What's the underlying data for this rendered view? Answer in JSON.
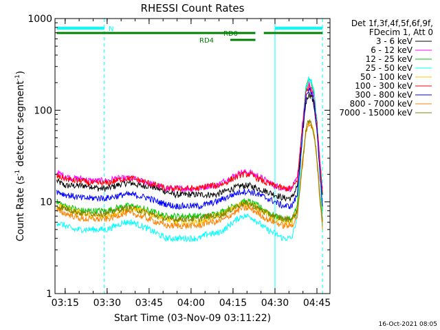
{
  "chart_data": {
    "type": "line",
    "title": "RHESSI Count Rates",
    "xlabel": "Start Time (03-Nov-09 03:11:22)",
    "ylabel": "Count Rate (s",
    "ylabel_sup1": "-1",
    "ylabel_mid": " detector segment",
    "ylabel_sup2": "-1",
    "ylabel_end": ")",
    "yscale": "log",
    "ylim": [
      1,
      1000
    ],
    "xlim": [
      "03:11:22",
      "04:49:40"
    ],
    "x_ticks": [
      "03:15",
      "03:30",
      "03:45",
      "04:00",
      "04:15",
      "04:30",
      "04:45"
    ],
    "y_ticks": [
      "1",
      "10",
      "100",
      "1000"
    ],
    "x": [
      "03:12",
      "03:15",
      "03:18",
      "03:21",
      "03:24",
      "03:27",
      "03:30",
      "03:33",
      "03:36",
      "03:39",
      "03:42",
      "03:45",
      "03:48",
      "03:51",
      "03:54",
      "03:57",
      "04:00",
      "04:03",
      "04:06",
      "04:09",
      "04:12",
      "04:15",
      "04:18",
      "04:21",
      "04:24",
      "04:27",
      "04:30",
      "04:33",
      "04:36",
      "04:38",
      "04:40",
      "04:41",
      "04:42",
      "04:43",
      "04:44",
      "04:45",
      "04:46",
      "04:47"
    ],
    "series": [
      {
        "name": "3 - 6 keV",
        "color": "#000000",
        "values": [
          17,
          15,
          15,
          15,
          15,
          14,
          14,
          15,
          16,
          16,
          15,
          15,
          14,
          13,
          12,
          12,
          12,
          12,
          12,
          12,
          13,
          14,
          15,
          15,
          14,
          13,
          12,
          11,
          11,
          15,
          60,
          120,
          150,
          145,
          110,
          60,
          25,
          12
        ]
      },
      {
        "name": "6 - 12 keV",
        "color": "#ff00ff",
        "values": [
          21,
          19,
          18,
          18,
          17,
          17,
          17,
          18,
          18,
          18,
          17,
          16,
          15,
          14,
          14,
          14,
          14,
          14,
          15,
          15,
          17,
          19,
          21,
          21,
          19,
          17,
          15,
          14,
          14,
          18,
          80,
          160,
          190,
          180,
          140,
          75,
          30,
          14
        ]
      },
      {
        "name": "12 - 25 keV",
        "color": "#00c800",
        "values": [
          10,
          9,
          8.5,
          8,
          8,
          8,
          8,
          8.5,
          9,
          9,
          8.5,
          8,
          7.5,
          7,
          7,
          7,
          7,
          7,
          7,
          7.5,
          8,
          9,
          10,
          10,
          9,
          8,
          7,
          6.5,
          6.5,
          9,
          70,
          165,
          215,
          200,
          150,
          75,
          25,
          8
        ]
      },
      {
        "name": "25 - 50 keV",
        "color": "#00ffff",
        "values": [
          6,
          5.5,
          5,
          5,
          5,
          5,
          5,
          5.5,
          6,
          6,
          5.5,
          5,
          4.5,
          4,
          4,
          4,
          4,
          4,
          4.5,
          4.5,
          5,
          6,
          7,
          7,
          6,
          5,
          4.5,
          4,
          4,
          7,
          70,
          170,
          220,
          210,
          160,
          80,
          25,
          5
        ]
      },
      {
        "name": "50 - 100 keV",
        "color": "#ffc800",
        "values": [
          9,
          8.5,
          8,
          7.5,
          7,
          7,
          7,
          7.5,
          8,
          8.5,
          8,
          7.5,
          7,
          6.5,
          6,
          6,
          6,
          6,
          6.5,
          7,
          7.5,
          8.5,
          9.5,
          9.5,
          8.5,
          7.5,
          6.5,
          6,
          6,
          8,
          30,
          60,
          75,
          70,
          55,
          30,
          12,
          6
        ]
      },
      {
        "name": "100 - 300 keV",
        "color": "#ff0000",
        "values": [
          19,
          18,
          17,
          17,
          16,
          16,
          16,
          17,
          18,
          18,
          17,
          16,
          15,
          14,
          14,
          14,
          14,
          14,
          15,
          15,
          16,
          18,
          20,
          20,
          18,
          16,
          15,
          14,
          14,
          17,
          75,
          150,
          180,
          170,
          130,
          70,
          28,
          13
        ]
      },
      {
        "name": "300 - 800 keV",
        "color": "#0000ff",
        "values": [
          13,
          12,
          11.5,
          11,
          11,
          11,
          11,
          11.5,
          12,
          12,
          11.5,
          11,
          10,
          9.5,
          9,
          9,
          9,
          9,
          9.5,
          10,
          11,
          12,
          13,
          13,
          12,
          11,
          10,
          9,
          9,
          12,
          60,
          130,
          170,
          160,
          120,
          60,
          22,
          9
        ]
      },
      {
        "name": "800 - 7000 keV",
        "color": "#ff8000",
        "values": [
          8,
          7.5,
          7,
          6.5,
          6.5,
          6.5,
          6.5,
          7,
          7.5,
          7.5,
          7,
          6.5,
          6,
          5.5,
          5.5,
          5.5,
          5.5,
          5.5,
          6,
          6,
          6.5,
          7.5,
          8.5,
          8.5,
          7.5,
          6.5,
          6,
          5.5,
          5.5,
          7,
          28,
          58,
          72,
          68,
          52,
          28,
          11,
          5
        ]
      },
      {
        "name": "7000 - 15000 keV",
        "color": "#808000",
        "values": [
          9,
          8.5,
          8,
          7.5,
          7.5,
          7.5,
          7.5,
          8,
          8.5,
          8.5,
          8,
          7.5,
          7,
          6.5,
          6.5,
          6.5,
          6.5,
          6.5,
          7,
          7,
          7.5,
          8.5,
          9.5,
          9.5,
          8.5,
          7.5,
          7,
          6.5,
          6.5,
          8,
          30,
          60,
          75,
          72,
          55,
          30,
          12,
          6
        ]
      }
    ],
    "legend": {
      "header_line1": "Det 1f,3f,4f,5f,6f,9f,",
      "header_line2": "FDecim 1, Att 0",
      "position": "right"
    },
    "vertical_lines": [
      {
        "time": "03:29",
        "style": "dashed",
        "color": "#00ffff"
      },
      {
        "time": "04:30",
        "style": "solid",
        "color": "#00ffff"
      },
      {
        "time": "04:47",
        "style": "dashed",
        "color": "#00ffff"
      }
    ],
    "annotations": {
      "night_label": "N",
      "night_color": "#00ffff",
      "night_bars": [
        [
          "03:12",
          "03:29"
        ],
        [
          "04:30",
          "04:47"
        ]
      ],
      "rd0_label": "RD0",
      "rd0_bars": [
        [
          "03:12",
          "04:23"
        ],
        [
          "04:26",
          "04:47"
        ]
      ],
      "rd4_label": "RD4",
      "rd4_bars": [
        [
          "04:14",
          "04:23"
        ]
      ],
      "bar_color": "#008000"
    },
    "timestamp": "16-Oct-2021 08:05"
  }
}
